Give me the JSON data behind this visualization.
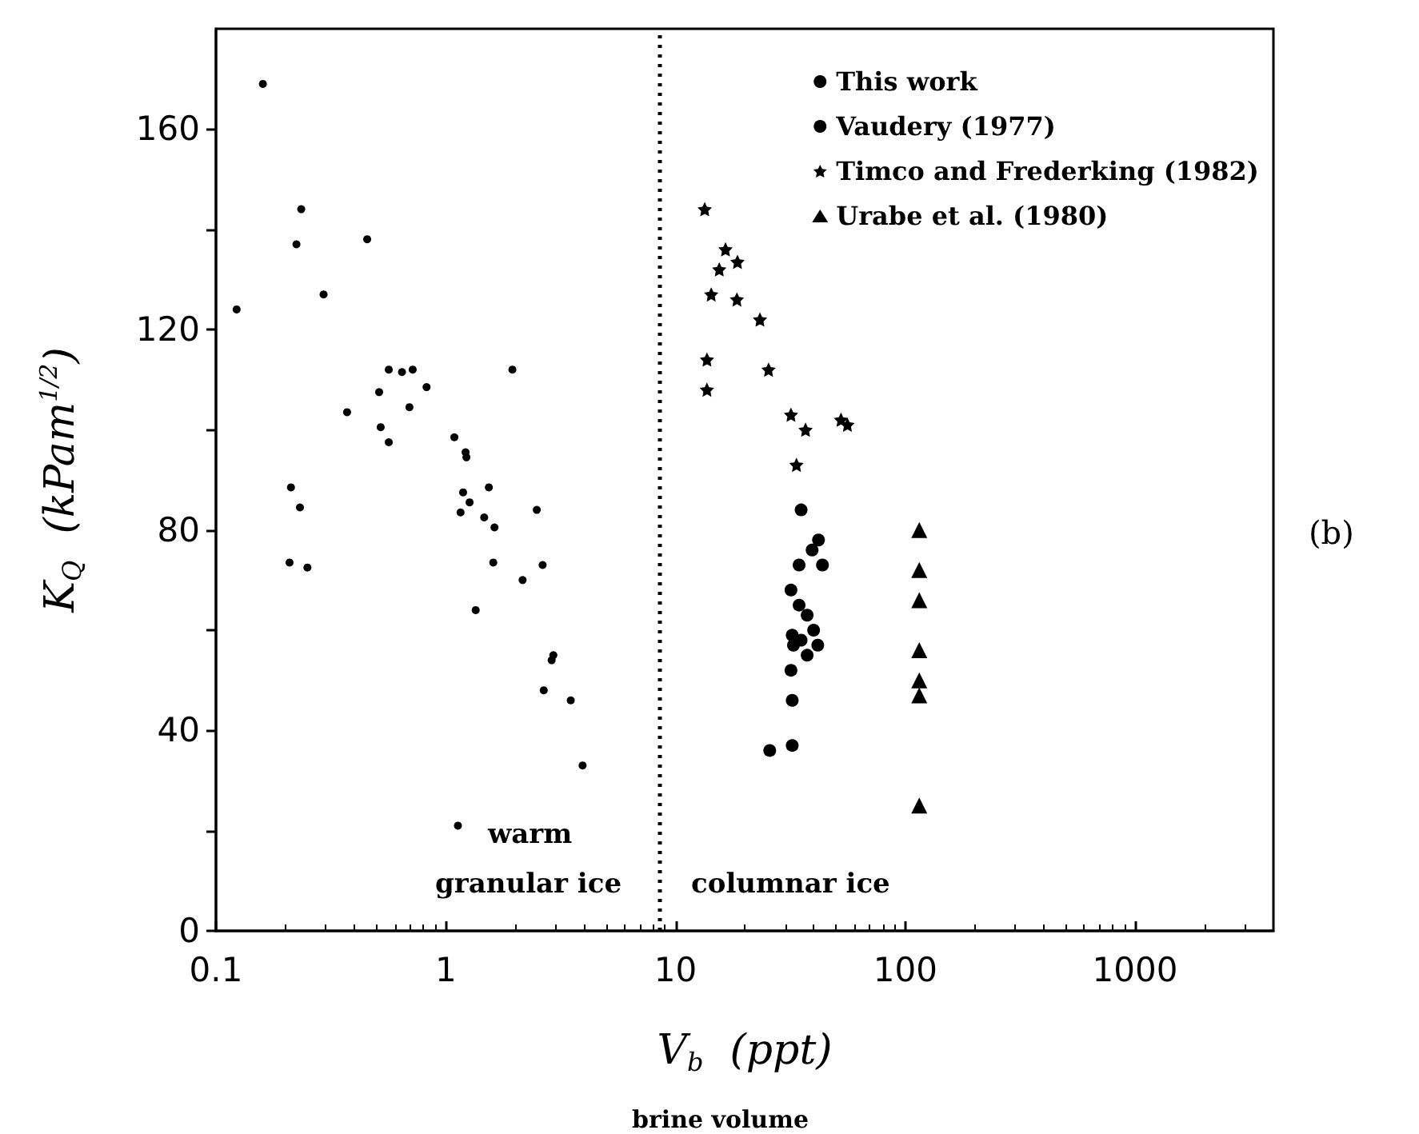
{
  "chart_data": {
    "type": "scatter",
    "xlabel": "V$_{b}$  (ppt)",
    "ylabel": "K$_{Q}$  (kPam$^{1/2}$)",
    "annotations": [
      "warm",
      "granular ice",
      "columnar ice",
      "(b)",
      "brine volume"
    ],
    "log": "x",
    "xlim": [
      0.1,
      4000
    ],
    "xticks": [
      0.1,
      1,
      10,
      100,
      1000
    ],
    "ylim": [
      0,
      180
    ],
    "yticks": [
      0,
      {
        "value": 20,
        "label": null
      },
      40,
      {
        "value": 60,
        "label": null
      },
      80,
      {
        "value": 100,
        "label": null
      },
      120,
      {
        "value": 140,
        "label": null
      },
      160
    ],
    "grid": false,
    "legend": "top right",
    "ref_lines": [
      {
        "axis": "x",
        "value": 8.5,
        "line_style": "dotted",
        "color": "#000000"
      }
    ],
    "series": [
      {
        "name": "This work",
        "color": "#000000",
        "marker": "circle",
        "x": [
          0.16,
          0.235,
          0.224,
          0.455,
          0.294,
          0.123,
          0.565,
          0.645,
          0.718,
          1.95,
          0.513,
          0.825,
          0.695,
          0.372,
          0.521,
          0.565,
          1.09,
          1.22,
          1.23,
          0.212,
          0.232,
          0.209,
          0.25,
          1.19,
          1.54,
          1.27,
          1.16,
          1.47,
          1.63,
          2.49,
          1.61,
          2.64,
          2.16,
          1.35,
          2.94,
          2.89,
          2.67,
          3.5,
          3.94,
          1.13
        ],
        "values": [
          169,
          144,
          137,
          138,
          127,
          124,
          112,
          111.5,
          112,
          112,
          107.5,
          108.5,
          104.5,
          103.5,
          100.5,
          97.5,
          98.5,
          95.5,
          94.5,
          88.5,
          84.5,
          73.5,
          72.5,
          87.5,
          88.5,
          85.5,
          83.5,
          82.5,
          80.5,
          84,
          73.5,
          73,
          70,
          64,
          55,
          54,
          48,
          46,
          33,
          21
        ]
      },
      {
        "name": "Vaudery (1977)",
        "color": "#000000",
        "marker": "circle",
        "x": [
          35.2,
          41.9,
          39.3,
          34.5,
          43.6,
          31.8,
          34.5,
          37.4,
          39.9,
          32.2,
          35.2,
          41.6,
          32.6,
          37.4,
          31.8,
          32.2,
          32.2,
          25.7
        ],
        "values": [
          84,
          78,
          76,
          73,
          73,
          68,
          65,
          63,
          60,
          59,
          58,
          57,
          57,
          55,
          52,
          46,
          37,
          36
        ]
      },
      {
        "name": "Timco and Frederking (1982)",
        "color": "#000000",
        "marker": "star",
        "x": [
          13.4,
          16.5,
          15.5,
          18.6,
          14.3,
          18.5,
          23.3,
          13.7,
          25.4,
          13.7,
          31.8,
          36.8,
          52.5,
          56,
          33.6
        ],
        "values": [
          144,
          136,
          132,
          133.5,
          127,
          126,
          122,
          114,
          112,
          108,
          103,
          100,
          102,
          101,
          93
        ]
      },
      {
        "name": "Urabe et al. (1980)",
        "color": "#000000",
        "marker": "triangle",
        "x": [
          115,
          115,
          115,
          115,
          115,
          115,
          115
        ],
        "values": [
          80,
          72,
          66,
          56,
          50,
          47,
          25
        ]
      }
    ]
  }
}
